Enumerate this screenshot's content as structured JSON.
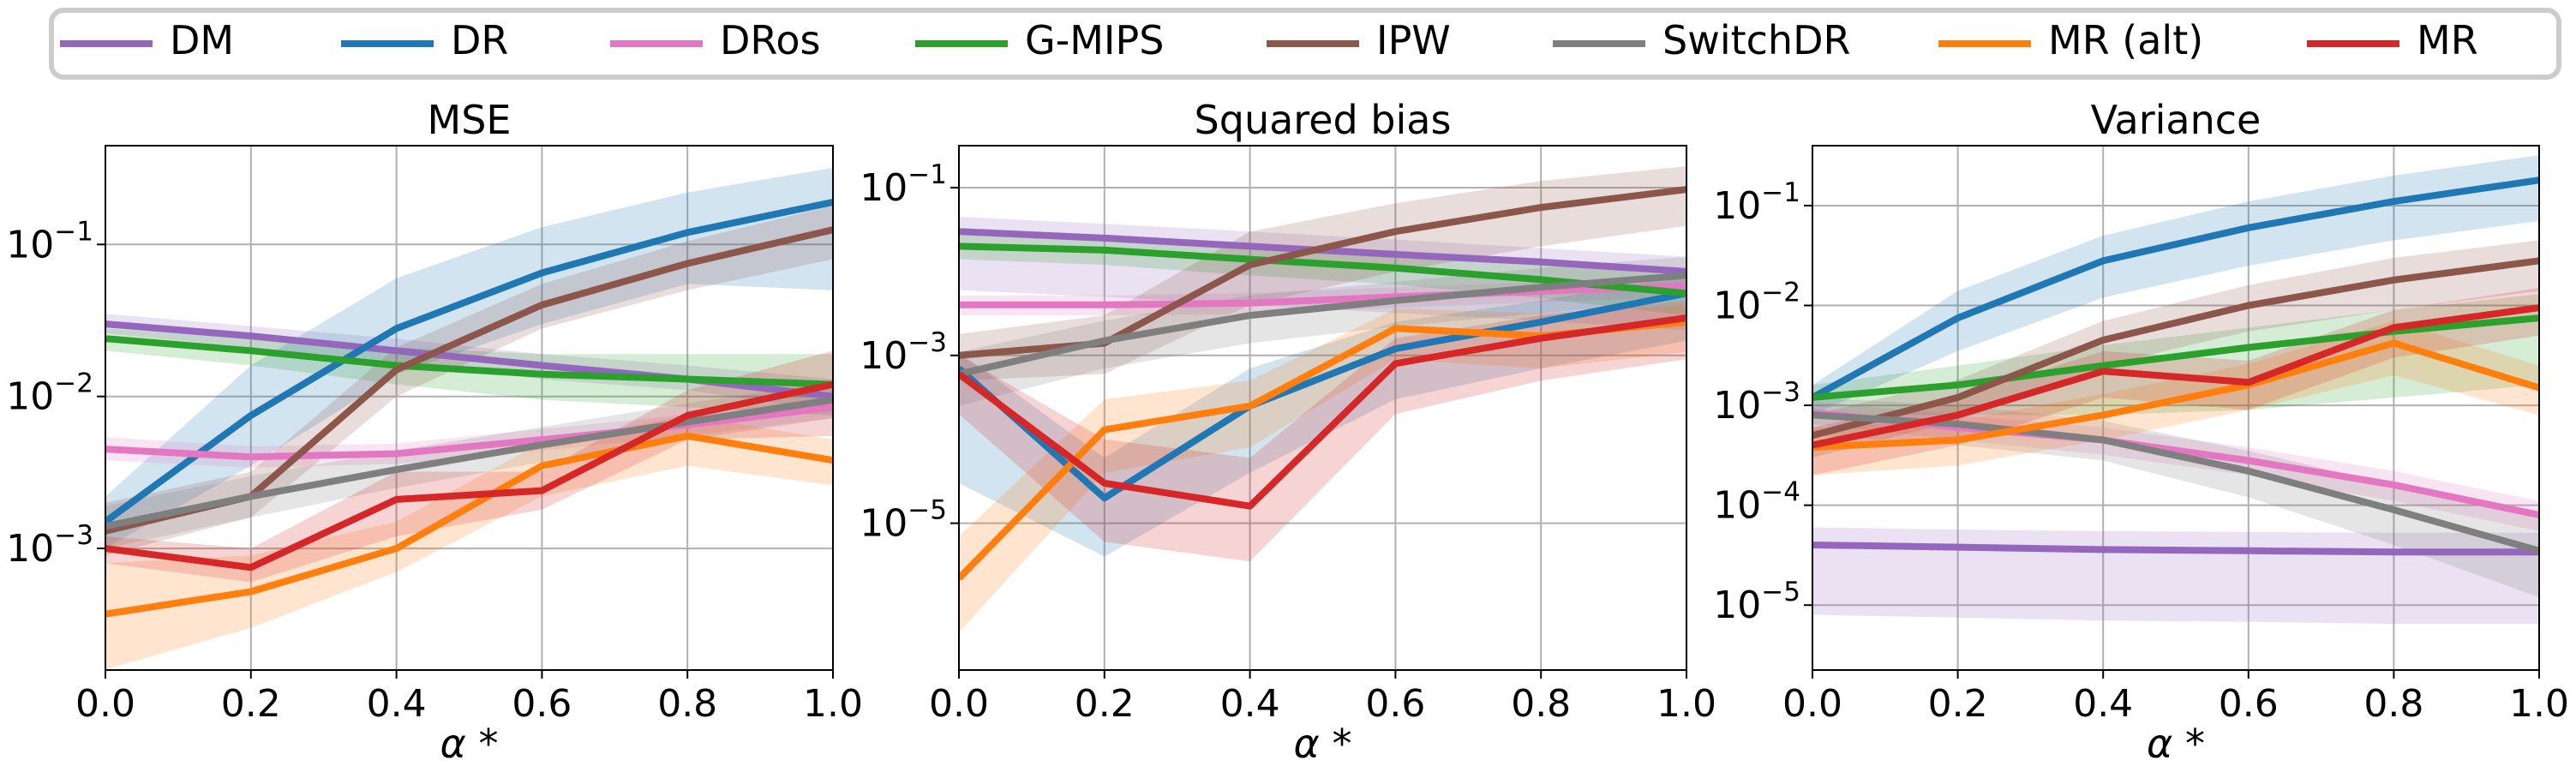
{
  "legend": {
    "placement": "top-center",
    "entries": [
      {
        "label": "DM",
        "color": "#9467bd"
      },
      {
        "label": "DR",
        "color": "#1f77b4"
      },
      {
        "label": "DRos",
        "color": "#e377c2"
      },
      {
        "label": "G-MIPS",
        "color": "#2ca02c"
      },
      {
        "label": "IPW",
        "color": "#8c564b"
      },
      {
        "label": "SwitchDR",
        "color": "#7f7f7f"
      },
      {
        "label": "MR (alt)",
        "color": "#ff7f0e"
      },
      {
        "label": "MR",
        "color": "#d62728"
      }
    ]
  },
  "chart_data": [
    {
      "type": "line",
      "title": "MSE",
      "xlabel": "α *",
      "ylabel": "",
      "yscale": "log",
      "xlim": [
        0,
        1
      ],
      "ylim_log10": [
        -3.8,
        -0.35
      ],
      "grid": true,
      "x": [
        0.0,
        0.2,
        0.4,
        0.6,
        0.8,
        1.0
      ],
      "xtick_labels": [
        "0.0",
        "0.2",
        "0.4",
        "0.6",
        "0.8",
        "1.0"
      ],
      "yticks": [
        {
          "exp": -1,
          "label": "10−1"
        },
        {
          "exp": -2,
          "label": "10−2"
        },
        {
          "exp": -3,
          "label": "10−3"
        }
      ],
      "series": [
        {
          "name": "DM",
          "values": [
            0.03,
            0.025,
            0.02,
            0.016,
            0.013,
            0.01
          ],
          "lower": [
            0.026,
            0.021,
            0.017,
            0.013,
            0.011,
            0.008
          ],
          "upper": [
            0.035,
            0.029,
            0.024,
            0.019,
            0.016,
            0.013
          ]
        },
        {
          "name": "DR",
          "values": [
            0.0015,
            0.0075,
            0.028,
            0.065,
            0.12,
            0.19
          ],
          "lower": [
            0.001,
            0.0035,
            0.014,
            0.03,
            0.055,
            0.05
          ],
          "upper": [
            0.0022,
            0.016,
            0.06,
            0.13,
            0.22,
            0.32
          ]
        },
        {
          "name": "DRos",
          "values": [
            0.0045,
            0.004,
            0.0042,
            0.0052,
            0.0065,
            0.0085
          ],
          "lower": [
            0.0038,
            0.0034,
            0.0036,
            0.0044,
            0.0055,
            0.0072
          ],
          "upper": [
            0.0054,
            0.0047,
            0.0049,
            0.0061,
            0.0076,
            0.01
          ]
        },
        {
          "name": "G-MIPS",
          "values": [
            0.024,
            0.02,
            0.016,
            0.014,
            0.013,
            0.012
          ],
          "lower": [
            0.02,
            0.016,
            0.012,
            0.0095,
            0.0085,
            0.0075
          ],
          "upper": [
            0.028,
            0.024,
            0.021,
            0.019,
            0.019,
            0.019
          ]
        },
        {
          "name": "IPW",
          "values": [
            0.0013,
            0.0022,
            0.015,
            0.04,
            0.075,
            0.125
          ],
          "lower": [
            0.0009,
            0.0016,
            0.01,
            0.028,
            0.05,
            0.08
          ],
          "upper": [
            0.002,
            0.0032,
            0.021,
            0.055,
            0.105,
            0.18
          ]
        },
        {
          "name": "SwitchDR",
          "values": [
            0.0014,
            0.0022,
            0.0033,
            0.0048,
            0.0068,
            0.0095
          ],
          "lower": [
            0.001,
            0.0016,
            0.0025,
            0.0037,
            0.0052,
            0.0072
          ],
          "upper": [
            0.0019,
            0.003,
            0.0044,
            0.0063,
            0.009,
            0.0125
          ]
        },
        {
          "name": "MR (alt)",
          "values": [
            0.00037,
            0.00052,
            0.001,
            0.0035,
            0.0055,
            0.0038
          ],
          "lower": [
            0.00016,
            0.0003,
            0.0007,
            0.0022,
            0.0035,
            0.0026
          ],
          "upper": [
            0.0008,
            0.0009,
            0.0015,
            0.005,
            0.0075,
            0.0052
          ]
        },
        {
          "name": "MR",
          "values": [
            0.001,
            0.00075,
            0.0021,
            0.0024,
            0.0075,
            0.012
          ],
          "lower": [
            0.0008,
            0.0006,
            0.0012,
            0.0018,
            0.0052,
            0.0055
          ],
          "upper": [
            0.0012,
            0.001,
            0.0032,
            0.0032,
            0.011,
            0.02
          ]
        }
      ]
    },
    {
      "type": "line",
      "title": "Squared bias",
      "xlabel": "α *",
      "ylabel": "",
      "yscale": "log",
      "xlim": [
        0,
        1
      ],
      "ylim_log10": [
        -6.75,
        -0.5
      ],
      "grid": true,
      "x": [
        0.0,
        0.2,
        0.4,
        0.6,
        0.8,
        1.0
      ],
      "xtick_labels": [
        "0.0",
        "0.2",
        "0.4",
        "0.6",
        "0.8",
        "1.0"
      ],
      "yticks": [
        {
          "exp": -1,
          "label": "10−1"
        },
        {
          "exp": -3,
          "label": "10−3"
        },
        {
          "exp": -5,
          "label": "10−5"
        }
      ],
      "series": [
        {
          "name": "DM",
          "values": [
            0.03,
            0.025,
            0.02,
            0.016,
            0.013,
            0.01
          ],
          "lower": [
            0.006,
            0.005,
            0.004,
            0.0032,
            0.0026,
            0.002
          ],
          "upper": [
            0.045,
            0.037,
            0.03,
            0.024,
            0.019,
            0.015
          ]
        },
        {
          "name": "DR",
          "values": [
            0.0007,
            2e-05,
            0.00025,
            0.0012,
            0.0025,
            0.0055
          ],
          "lower": [
            3e-05,
            4e-06,
            4e-05,
            0.0003,
            0.0007,
            0.0015
          ],
          "upper": [
            0.0011,
            6e-05,
            0.0007,
            0.0025,
            0.0045,
            0.009
          ]
        },
        {
          "name": "DRos",
          "values": [
            0.004,
            0.004,
            0.0042,
            0.005,
            0.0058,
            0.0068
          ],
          "lower": [
            0.003,
            0.003,
            0.0031,
            0.0037,
            0.0043,
            0.005
          ],
          "upper": [
            0.0052,
            0.0052,
            0.0055,
            0.0065,
            0.0075,
            0.0088
          ]
        },
        {
          "name": "G-MIPS",
          "values": [
            0.02,
            0.018,
            0.014,
            0.011,
            0.008,
            0.0055
          ],
          "lower": [
            0.014,
            0.012,
            0.009,
            0.007,
            0.0048,
            0.003
          ],
          "upper": [
            0.027,
            0.024,
            0.02,
            0.016,
            0.012,
            0.009
          ]
        },
        {
          "name": "IPW",
          "values": [
            0.001,
            0.0014,
            0.012,
            0.03,
            0.058,
            0.095
          ],
          "lower": [
            0.0005,
            0.0006,
            0.004,
            0.01,
            0.02,
            0.035
          ],
          "upper": [
            0.0018,
            0.003,
            0.03,
            0.065,
            0.12,
            0.18
          ]
        },
        {
          "name": "SwitchDR",
          "values": [
            0.0006,
            0.0015,
            0.003,
            0.0045,
            0.0065,
            0.009
          ],
          "lower": [
            0.00025,
            0.0007,
            0.0014,
            0.0022,
            0.0032,
            0.0045
          ],
          "upper": [
            0.0011,
            0.0026,
            0.0052,
            0.0075,
            0.011,
            0.015
          ]
        },
        {
          "name": "MR (alt)",
          "values": [
            2.2e-06,
            0.00013,
            0.00025,
            0.0021,
            0.0017,
            0.0025
          ],
          "lower": [
            5e-07,
            4e-05,
            8e-05,
            0.0009,
            0.0007,
            0.0011
          ],
          "upper": [
            7e-06,
            0.0003,
            0.0005,
            0.0036,
            0.0032,
            0.004
          ]
        },
        {
          "name": "MR",
          "values": [
            0.0006,
            3e-05,
            1.6e-05,
            0.0008,
            0.0016,
            0.0028
          ],
          "lower": [
            0.0002,
            6e-06,
            3.5e-06,
            0.0002,
            0.0005,
            0.0009
          ],
          "upper": [
            0.001,
            0.0001,
            6e-05,
            0.0016,
            0.003,
            0.0045
          ]
        }
      ]
    },
    {
      "type": "line",
      "title": "Variance",
      "xlabel": "α *",
      "ylabel": "",
      "yscale": "log",
      "xlim": [
        0,
        1
      ],
      "ylim_log10": [
        -5.65,
        -0.4
      ],
      "grid": true,
      "x": [
        0.0,
        0.2,
        0.4,
        0.6,
        0.8,
        1.0
      ],
      "xtick_labels": [
        "0.0",
        "0.2",
        "0.4",
        "0.6",
        "0.8",
        "1.0"
      ],
      "yticks": [
        {
          "exp": -1,
          "label": "10−1"
        },
        {
          "exp": -2,
          "label": "10−2"
        },
        {
          "exp": -3,
          "label": "10−3"
        },
        {
          "exp": -4,
          "label": "10−4"
        },
        {
          "exp": -5,
          "label": "10−5"
        }
      ],
      "series": [
        {
          "name": "DM",
          "values": [
            4e-05,
            3.8e-05,
            3.6e-05,
            3.5e-05,
            3.4e-05,
            3.4e-05
          ],
          "lower": [
            8e-06,
            7.5e-06,
            7e-06,
            6.8e-06,
            6.5e-06,
            6.5e-06
          ],
          "upper": [
            6e-05,
            5.7e-05,
            5.5e-05,
            5.4e-05,
            5.3e-05,
            5.3e-05
          ]
        },
        {
          "name": "DR",
          "values": [
            0.0012,
            0.0075,
            0.028,
            0.06,
            0.11,
            0.18
          ],
          "lower": [
            0.0008,
            0.0035,
            0.012,
            0.025,
            0.045,
            0.07
          ],
          "upper": [
            0.0016,
            0.014,
            0.05,
            0.11,
            0.2,
            0.32
          ]
        },
        {
          "name": "DRos",
          "values": [
            0.00085,
            0.0006,
            0.00045,
            0.00028,
            0.00016,
            8e-05
          ],
          "lower": [
            0.00065,
            0.00045,
            0.00032,
            0.0002,
            0.00011,
            5.5e-05
          ],
          "upper": [
            0.0011,
            0.0008,
            0.0006,
            0.00038,
            0.00022,
            0.00011
          ]
        },
        {
          "name": "G-MIPS",
          "values": [
            0.0012,
            0.0016,
            0.0025,
            0.0038,
            0.0055,
            0.0075
          ],
          "lower": [
            0.0008,
            0.0008,
            0.0008,
            0.0009,
            0.0012,
            0.0016
          ],
          "upper": [
            0.0016,
            0.0025,
            0.004,
            0.006,
            0.009,
            0.013
          ]
        },
        {
          "name": "IPW",
          "values": [
            0.0005,
            0.0012,
            0.0045,
            0.01,
            0.018,
            0.028
          ],
          "lower": [
            0.0003,
            0.0007,
            0.0025,
            0.0055,
            0.009,
            0.014
          ],
          "upper": [
            0.0008,
            0.0018,
            0.007,
            0.016,
            0.03,
            0.045
          ]
        },
        {
          "name": "SwitchDR",
          "values": [
            0.0008,
            0.00065,
            0.00045,
            0.00022,
            9e-05,
            3.5e-05
          ],
          "lower": [
            0.0005,
            0.0004,
            0.00028,
            0.00012,
            4e-05,
            1.2e-05
          ],
          "upper": [
            0.0012,
            0.001,
            0.0007,
            0.00035,
            0.00016,
            8e-05
          ]
        },
        {
          "name": "MR (alt)",
          "values": [
            0.00038,
            0.00045,
            0.0008,
            0.0016,
            0.0042,
            0.0015
          ],
          "lower": [
            0.0002,
            0.00025,
            0.00045,
            0.0009,
            0.002,
            0.0008
          ],
          "upper": [
            0.0006,
            0.0007,
            0.0013,
            0.0026,
            0.007,
            0.0025
          ]
        },
        {
          "name": "MR",
          "values": [
            0.0004,
            0.0008,
            0.0022,
            0.0017,
            0.006,
            0.0095
          ],
          "lower": [
            0.0002,
            0.0004,
            0.0012,
            0.0009,
            0.003,
            0.005
          ],
          "upper": [
            0.0006,
            0.0012,
            0.0035,
            0.0028,
            0.009,
            0.015
          ]
        }
      ]
    }
  ]
}
